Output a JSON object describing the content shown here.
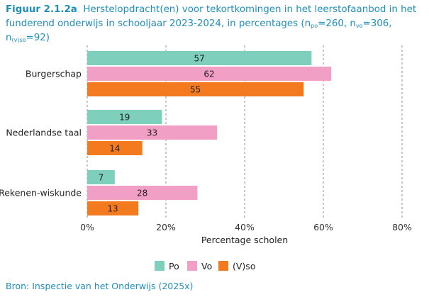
{
  "figure": {
    "label": "Figuur 2.1.2a",
    "title_line1": "Herstelopdracht(en) voor tekortkomingen in het leerstofaanbod in het",
    "title_line2_pre": "funderend onderwijs in schooljaar 2023-2024, in percentages (n",
    "n_po_sub": "po",
    "n_po_val": "=260, n",
    "n_vo_sub": "vo",
    "n_vo_val": "=306, n",
    "n_vso_sub": "(v)so",
    "n_vso_val": "=92)"
  },
  "source": "Bron: Inspectie van het Onderwijs (2025x)",
  "chart_data": {
    "type": "bar",
    "orientation": "horizontal",
    "categories": [
      "Burgerschap",
      "Nederlandse taal",
      "Rekenen-wiskunde"
    ],
    "series": [
      {
        "name": "Po",
        "values": [
          57,
          19,
          7
        ],
        "color": "#7fcfbd"
      },
      {
        "name": "Vo",
        "values": [
          62,
          33,
          28
        ],
        "color": "#f29fc5"
      },
      {
        "name": "(V)so",
        "values": [
          55,
          14,
          13
        ],
        "color": "#f47a20"
      }
    ],
    "xlabel": "Percentage scholen",
    "xlim": [
      0,
      80
    ],
    "xticks": [
      0,
      20,
      40,
      60,
      80
    ],
    "xtick_labels": [
      "0%",
      "20%",
      "40%",
      "60%",
      "80%"
    ],
    "grid": "vertical dashed",
    "legend": "bottom-center"
  }
}
